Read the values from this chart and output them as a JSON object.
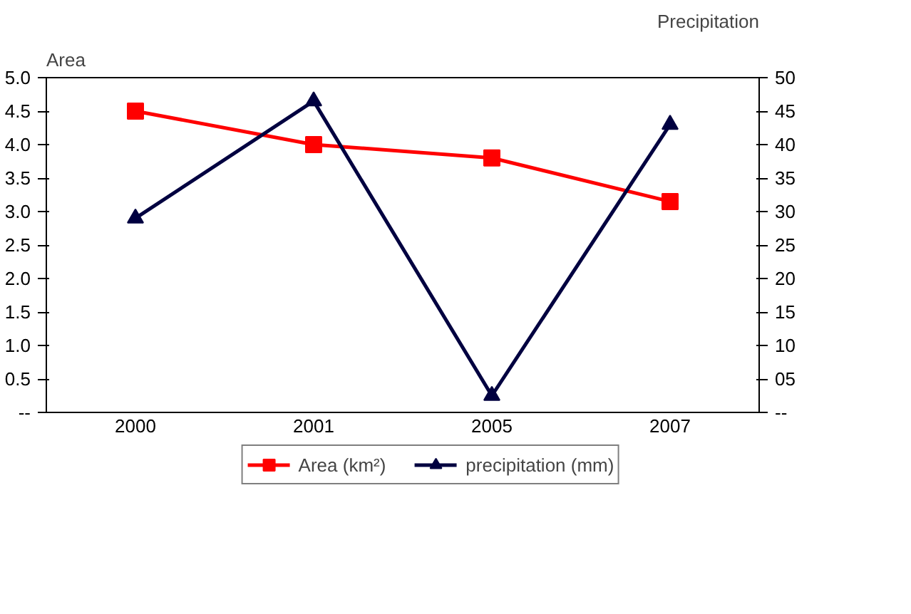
{
  "chart_data": {
    "type": "line",
    "categories": [
      "2000",
      "2001",
      "2005",
      "2007"
    ],
    "ylabel": "Area",
    "y2label": "Precipitation",
    "ylim": [
      0,
      5
    ],
    "yticks": [
      {
        "value": 0,
        "label": "--"
      },
      0.5,
      {
        "value": 1,
        "label": "1.0"
      },
      1.5,
      {
        "value": 2,
        "label": "2.0"
      },
      2.5,
      {
        "value": 3,
        "label": "3.0"
      },
      3.5,
      {
        "value": 4,
        "label": "4.0"
      },
      4.5,
      {
        "value": 5,
        "label": "5.0"
      }
    ],
    "y2lim": [
      0,
      50
    ],
    "y2ticks": [
      {
        "value": 0,
        "label": "--"
      },
      {
        "value": 5,
        "label": "05"
      },
      10,
      15,
      20,
      25,
      30,
      35,
      40,
      45,
      50
    ],
    "grid": false,
    "legend": "bottom",
    "line_style": "solid",
    "series": [
      {
        "name": "Area (km²)",
        "color": "#ff0000",
        "marker": "square",
        "values": [
          4.5,
          4.0,
          3.8,
          3.15
        ]
      },
      {
        "name": "precipitation (mm)",
        "color": "#000040",
        "marker": "triangle",
        "axis": "y2",
        "values": [
          29,
          46.5,
          2.5,
          43
        ]
      }
    ]
  }
}
